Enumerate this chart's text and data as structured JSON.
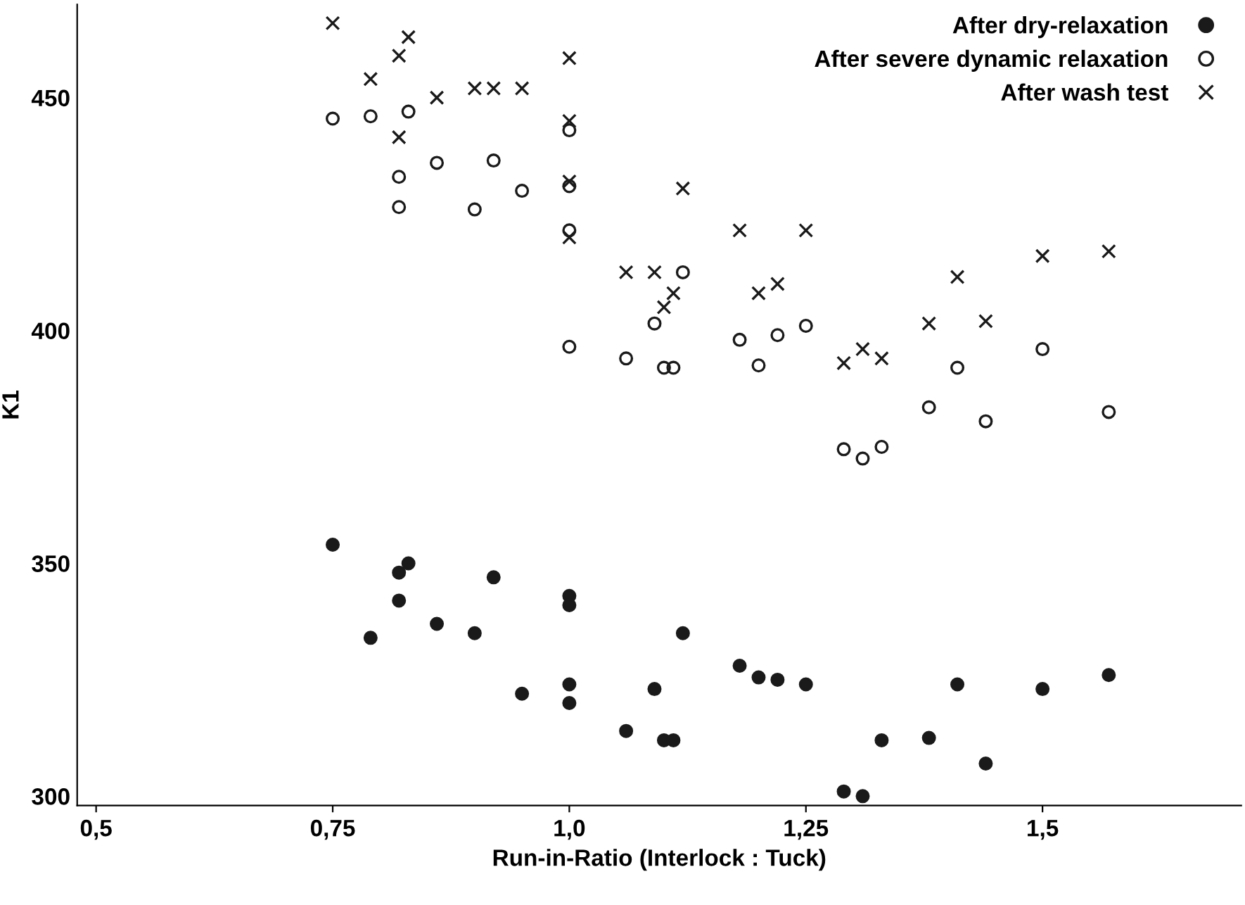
{
  "chart_data": {
    "type": "scatter",
    "xlabel": "Run-in-Ratio (Interlock : Tuck)",
    "ylabel": "K1",
    "xlim": [
      0.48,
      1.71
    ],
    "ylim": [
      298,
      470
    ],
    "xticks": [
      {
        "value": 0.5,
        "label": "0,5"
      },
      {
        "value": 0.75,
        "label": "0,75"
      },
      {
        "value": 1.0,
        "label": "1,0"
      },
      {
        "value": 1.25,
        "label": "1,25"
      },
      {
        "value": 1.5,
        "label": "1,5"
      }
    ],
    "yticks": [
      300,
      350,
      400,
      450
    ],
    "grid": false,
    "legend": "top right",
    "series": [
      {
        "name": "After dry-relaxation",
        "color": "#1a1a1a",
        "marker": "circle",
        "x": [
          0.75,
          0.79,
          0.82,
          0.83,
          0.82,
          0.86,
          0.9,
          0.92,
          0.95,
          1.0,
          1.0,
          1.0,
          1.0,
          1.06,
          1.09,
          1.1,
          1.11,
          1.12,
          1.18,
          1.2,
          1.22,
          1.25,
          1.29,
          1.31,
          1.33,
          1.38,
          1.41,
          1.44,
          1.5,
          1.57
        ],
        "values": [
          354,
          334,
          348,
          350,
          342,
          337,
          335,
          347,
          322,
          343,
          341,
          324,
          320,
          314,
          323,
          312,
          312,
          335,
          328,
          325.5,
          325,
          324,
          301,
          300,
          312,
          312.5,
          324,
          307,
          323,
          326
        ]
      },
      {
        "name": "After severe dynamic relaxation",
        "color": "#1a1a1a",
        "marker": "open circle",
        "x": [
          0.75,
          0.79,
          0.83,
          0.82,
          0.82,
          0.86,
          0.92,
          0.9,
          0.95,
          1.0,
          1.0,
          1.0,
          1.0,
          1.06,
          1.09,
          1.1,
          1.11,
          1.12,
          1.18,
          1.2,
          1.22,
          1.25,
          1.29,
          1.31,
          1.33,
          1.38,
          1.41,
          1.44,
          1.5,
          1.57
        ],
        "values": [
          445.5,
          446,
          447,
          433,
          426.5,
          436,
          436.5,
          426,
          430,
          443,
          431,
          421.5,
          396.5,
          394,
          401.5,
          392,
          392,
          412.5,
          398,
          392.5,
          399,
          401,
          374.5,
          372.5,
          375,
          383.5,
          392,
          380.5,
          396,
          382.5
        ]
      },
      {
        "name": "After wash test",
        "color": "#1a1a1a",
        "marker": "cross",
        "x": [
          0.75,
          0.79,
          0.82,
          0.83,
          0.82,
          0.86,
          0.9,
          0.92,
          0.95,
          1.0,
          1.0,
          1.0,
          1.0,
          1.06,
          1.09,
          1.1,
          1.11,
          1.12,
          1.18,
          1.2,
          1.22,
          1.25,
          1.29,
          1.31,
          1.33,
          1.38,
          1.41,
          1.44,
          1.5,
          1.57
        ],
        "values": [
          466,
          454,
          459,
          463,
          441.5,
          450,
          452,
          452,
          452,
          458.5,
          445,
          432,
          420,
          412.5,
          412.5,
          405,
          408,
          430.5,
          421.5,
          408,
          410,
          421.5,
          393,
          396,
          394,
          401.5,
          411.5,
          402,
          416,
          417
        ]
      }
    ]
  }
}
